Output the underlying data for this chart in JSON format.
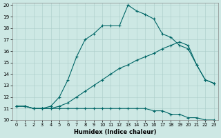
{
  "xlabel": "Humidex (Indice chaleur)",
  "background_color": "#cde8e4",
  "line_color": "#006666",
  "xlim": [
    -0.5,
    23.5
  ],
  "ylim": [
    10,
    20.2
  ],
  "yticks": [
    10,
    11,
    12,
    13,
    14,
    15,
    16,
    17,
    18,
    19,
    20
  ],
  "xticks": [
    0,
    1,
    2,
    3,
    4,
    5,
    6,
    7,
    8,
    9,
    10,
    11,
    12,
    13,
    14,
    15,
    16,
    17,
    18,
    19,
    20,
    21,
    22,
    23
  ],
  "series": [
    {
      "x": [
        0,
        1,
        2,
        3,
        4,
        5,
        6,
        7,
        8,
        9,
        10,
        11,
        12,
        13,
        14,
        15,
        16,
        17,
        18,
        19,
        20,
        21,
        22,
        23
      ],
      "y": [
        11.2,
        11.2,
        11.0,
        11.0,
        11.0,
        11.0,
        11.0,
        11.0,
        11.0,
        11.0,
        11.0,
        11.0,
        11.0,
        11.0,
        11.0,
        11.0,
        10.8,
        10.8,
        10.5,
        10.5,
        10.2,
        10.2,
        10.0,
        10.0
      ]
    },
    {
      "x": [
        0,
        1,
        2,
        3,
        4,
        5,
        6,
        7,
        8,
        9,
        10,
        11,
        12,
        13,
        14,
        15,
        16,
        17,
        18,
        19,
        20,
        21,
        22,
        23
      ],
      "y": [
        11.2,
        11.2,
        11.0,
        11.0,
        11.0,
        11.2,
        11.5,
        12.0,
        12.5,
        13.0,
        13.5,
        14.0,
        14.5,
        14.8,
        15.2,
        15.5,
        15.8,
        16.2,
        16.5,
        16.8,
        16.5,
        14.8,
        13.5,
        13.2
      ]
    },
    {
      "x": [
        0,
        1,
        2,
        3,
        4,
        5,
        6,
        7,
        8,
        9,
        10,
        11,
        12,
        13,
        14,
        15,
        16,
        17,
        18,
        19,
        20,
        21,
        22,
        23
      ],
      "y": [
        11.2,
        11.2,
        11.0,
        11.0,
        11.2,
        12.0,
        13.5,
        15.5,
        17.0,
        17.5,
        18.2,
        18.2,
        18.2,
        20.0,
        19.5,
        19.2,
        18.8,
        17.5,
        17.2,
        16.5,
        16.2,
        14.8,
        13.5,
        13.2
      ]
    }
  ]
}
